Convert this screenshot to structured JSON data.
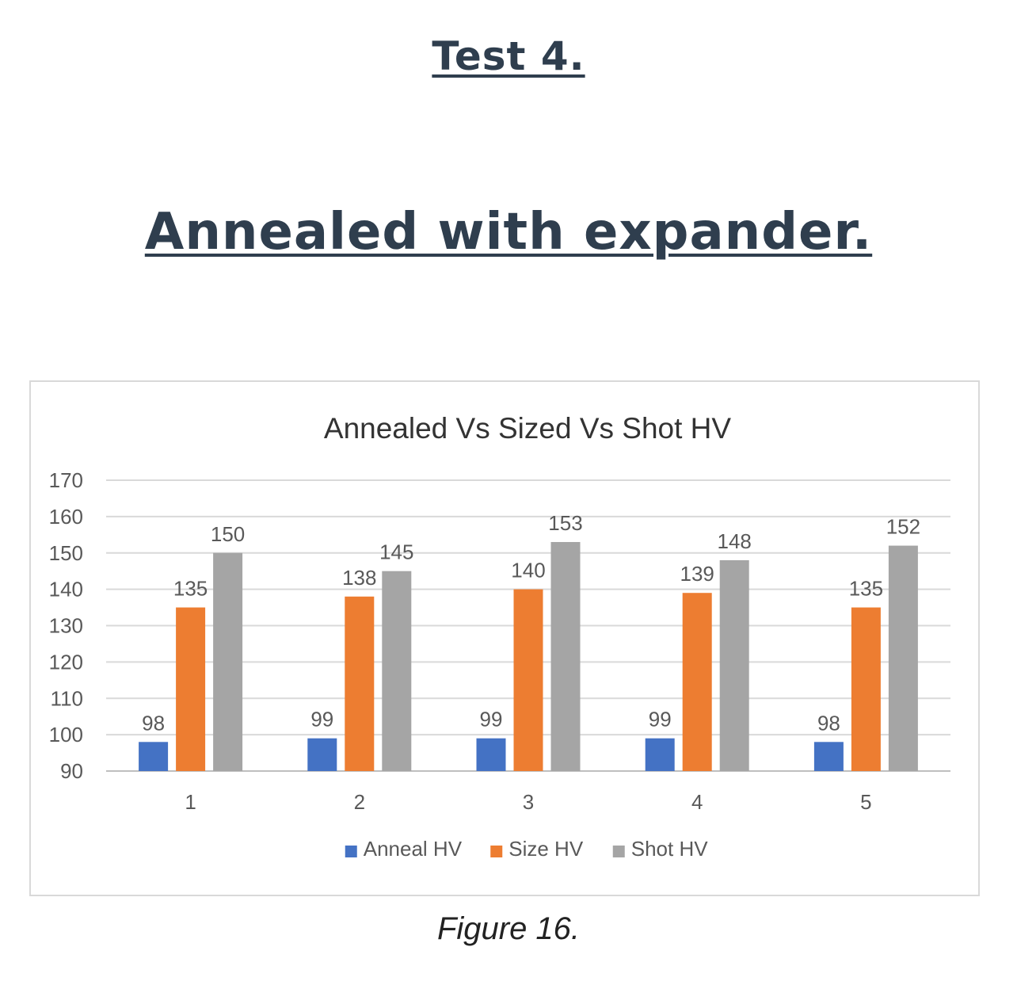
{
  "page": {
    "test_label": "Test 4.",
    "subtitle": "Annealed with expander.",
    "figure_caption": "Figure 16."
  },
  "chart_data": {
    "type": "bar",
    "title": "Annealed Vs Sized Vs Shot HV",
    "xlabel": "",
    "ylabel": "",
    "categories": [
      "1",
      "2",
      "3",
      "4",
      "5"
    ],
    "series": [
      {
        "name": "Anneal HV",
        "color": "#4472c4",
        "values": [
          98,
          99,
          99,
          99,
          98
        ]
      },
      {
        "name": "Size HV",
        "color": "#ed7d31",
        "values": [
          135,
          138,
          140,
          139,
          135
        ]
      },
      {
        "name": "Shot HV",
        "color": "#a5a5a5",
        "values": [
          150,
          145,
          153,
          148,
          152
        ]
      }
    ],
    "ylim": [
      90,
      170
    ],
    "yticks": [
      90,
      100,
      110,
      120,
      130,
      140,
      150,
      160,
      170
    ],
    "grid": true,
    "legend": "bottom",
    "data_labels": true
  }
}
